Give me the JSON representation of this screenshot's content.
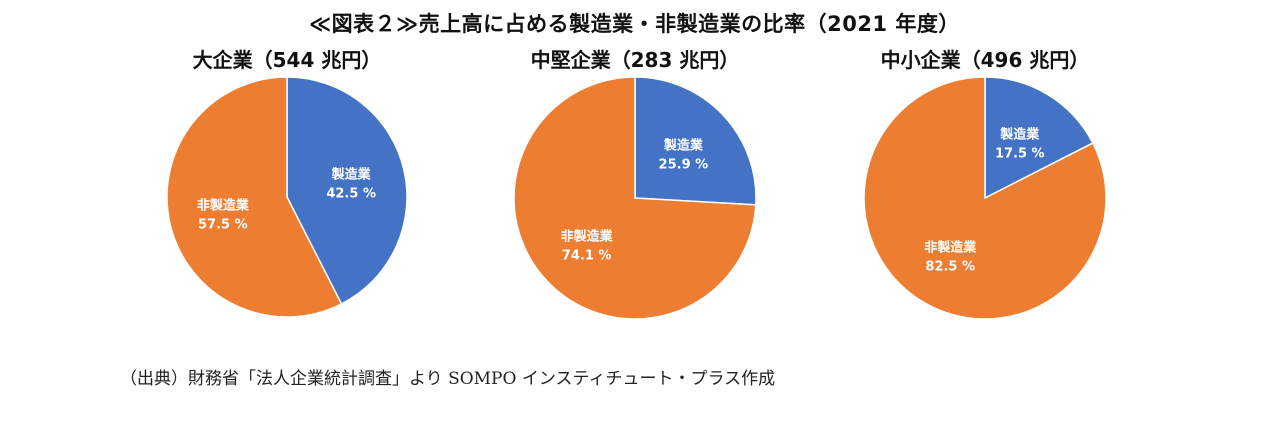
{
  "figure": {
    "title": "≪図表２≫売上高に占める製造業・非製造業の比率（2021 年度）",
    "source": "（出典）財務省「法人企業統計調査」より SOMPO インスティチュート・プラス作成"
  },
  "colors": {
    "manufacturing": "#4472C4",
    "non_manufacturing": "#ED7D31"
  },
  "chart_data": [
    {
      "type": "pie",
      "title": "大企業（544 兆円）",
      "slices": [
        {
          "label": "製造業",
          "value": 42.5,
          "value_label": "42.5 %"
        },
        {
          "label": "非製造業",
          "value": 57.5,
          "value_label": "57.5 %"
        }
      ]
    },
    {
      "type": "pie",
      "title": "中堅企業（283 兆円）",
      "slices": [
        {
          "label": "製造業",
          "value": 25.9,
          "value_label": "25.9 %"
        },
        {
          "label": "非製造業",
          "value": 74.1,
          "value_label": "74.1 %"
        }
      ]
    },
    {
      "type": "pie",
      "title": "中小企業（496 兆円）",
      "slices": [
        {
          "label": "製造業",
          "value": 17.5,
          "value_label": "17.5 %"
        },
        {
          "label": "非製造業",
          "value": 82.5,
          "value_label": "82.5 %"
        }
      ]
    }
  ]
}
